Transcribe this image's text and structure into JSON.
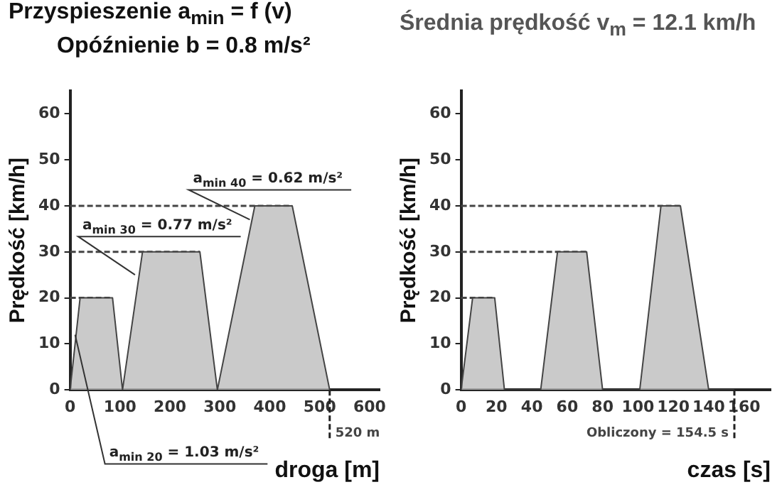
{
  "chart_data": [
    {
      "type": "area",
      "title": "Przyspieszenie a$_{min}$ = f (v)",
      "subtitle": "Opóźnienie b = 0.8 m/s²",
      "xlabel": "droga [m]",
      "ylabel": "Prędkość [km/h]",
      "xlim": [
        0,
        620
      ],
      "xticks": [
        0,
        100,
        200,
        300,
        400,
        500,
        600
      ],
      "ylim": [
        0,
        65
      ],
      "yticks": [
        0,
        10,
        20,
        30,
        40,
        50,
        60
      ],
      "grid": false,
      "legend": false,
      "x": [
        0,
        20,
        85,
        105,
        145,
        260,
        295,
        370,
        445,
        520
      ],
      "series": [
        {
          "color": "#bdbdbd",
          "values": [
            0,
            20,
            20,
            0,
            30,
            30,
            0,
            40,
            40,
            0
          ]
        }
      ],
      "ref_lines": [
        {
          "axis": "y",
          "value": 20,
          "line_style": "dotted",
          "color": "#444444"
        },
        {
          "axis": "y",
          "value": 30,
          "line_style": "dotted",
          "color": "#444444"
        },
        {
          "axis": "y",
          "value": 40,
          "line_style": "dotted",
          "color": "#444444"
        },
        {
          "axis": "x",
          "value": 520,
          "label": "520 m",
          "line_style": "dotted",
          "color": "#222222"
        }
      ],
      "annotations": [
        {
          "text": "a$_{min 20}$ = 1.03 m/s²",
          "x": 10,
          "y": 12
        },
        {
          "text": "a$_{min 30}$ = 0.77 m/s²",
          "x": 130,
          "y": 25
        },
        {
          "text": "a$_{min 40}$ = 0.62 m/s²",
          "x": 360,
          "y": 37
        }
      ]
    },
    {
      "type": "area",
      "title": "Średnia prędkość v$_{m}$ = 12.1 km/h",
      "xlabel": "czas [s]",
      "ylabel": "Prędkość [km/h]",
      "xlim": [
        0,
        175
      ],
      "xticks": [
        0,
        20,
        40,
        60,
        80,
        100,
        120,
        140,
        160
      ],
      "ylim": [
        0,
        65
      ],
      "yticks": [
        0,
        10,
        20,
        30,
        40,
        50,
        60
      ],
      "grid": false,
      "legend": false,
      "x": [
        0,
        6.5,
        19,
        24.5,
        45,
        54.5,
        71,
        80,
        101,
        113,
        124,
        140,
        154.5
      ],
      "series": [
        {
          "color": "#bdbdbd",
          "values": [
            0,
            20,
            20,
            0,
            0,
            30,
            30,
            0,
            0,
            40,
            40,
            0,
            0
          ]
        }
      ],
      "ref_lines": [
        {
          "axis": "y",
          "value": 20,
          "line_style": "dotted",
          "color": "#444444"
        },
        {
          "axis": "y",
          "value": 30,
          "line_style": "dotted",
          "color": "#444444"
        },
        {
          "axis": "y",
          "value": 40,
          "line_style": "dotted",
          "color": "#444444"
        },
        {
          "axis": "x",
          "value": 154.5,
          "label": "Obliczony = 154.5 s",
          "line_style": "dotted",
          "color": "#222222"
        }
      ]
    }
  ]
}
